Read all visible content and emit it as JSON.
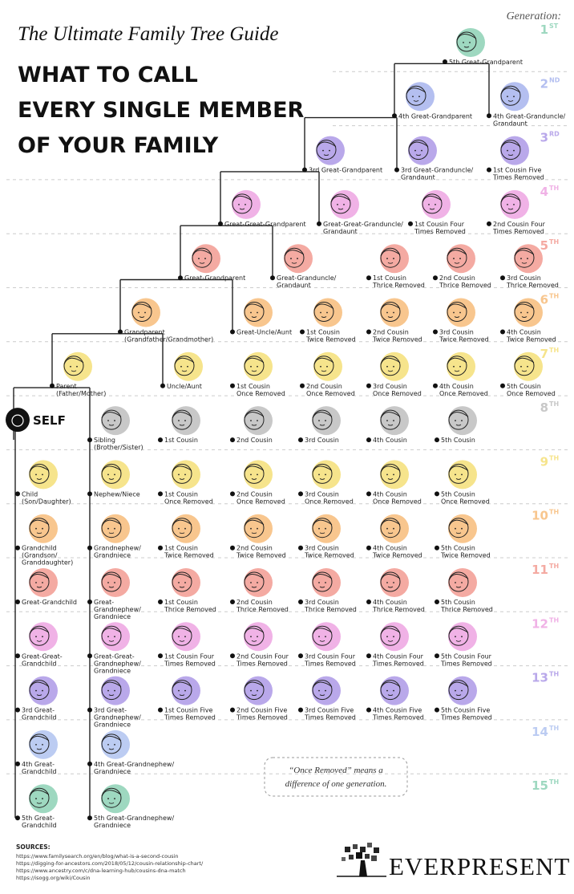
{
  "header": {
    "script_title": "The Ultimate Family Tree Guide",
    "title_lines": [
      "WHAT TO CALL",
      "EVERY SINGLE MEMBER",
      "OF YOUR FAMILY"
    ]
  },
  "generation_heading": "Generation:",
  "generations": [
    {
      "number": "1",
      "suffix": "ST",
      "color": "#9ed8c0",
      "members": [
        {
          "lines": [
            "5th Great-Grandparent"
          ]
        }
      ]
    },
    {
      "number": "2",
      "suffix": "ND",
      "color": "#b4bff0",
      "members": [
        {
          "lines": [
            "4th Great-Grandparent"
          ]
        },
        {
          "lines": [
            "4th Great-Granduncle/",
            "Grandaunt"
          ]
        }
      ]
    },
    {
      "number": "3",
      "suffix": "RD",
      "color": "#b9a8ea",
      "members": [
        {
          "lines": [
            "3rd Great-Grandparent"
          ]
        },
        {
          "lines": [
            "3rd Great-Granduncle/",
            "Grandaunt"
          ]
        },
        {
          "lines": [
            "1st Cousin Five",
            "Times Removed"
          ]
        }
      ]
    },
    {
      "number": "4",
      "suffix": "TH",
      "color": "#f0b2e6",
      "members": [
        {
          "lines": [
            "Great-Great-Grandparent"
          ]
        },
        {
          "lines": [
            "Great-Great-Granduncle/",
            "Grandaunt"
          ]
        },
        {
          "lines": [
            "1st Cousin Four",
            "Times Removed"
          ]
        },
        {
          "lines": [
            "2nd Cousin Four",
            "Times Removed"
          ]
        }
      ]
    },
    {
      "number": "5",
      "suffix": "TH",
      "color": "#f4aaa2",
      "members": [
        {
          "lines": [
            "Great-Grandparent"
          ]
        },
        {
          "lines": [
            "Great-Granduncle/",
            "Grandaunt"
          ]
        },
        {
          "lines": [
            "1st Cousin",
            "Thrice Removed"
          ]
        },
        {
          "lines": [
            "2nd Cousin",
            "Thrice Removed"
          ]
        },
        {
          "lines": [
            "3rd Cousin",
            "Thrice Removed"
          ]
        }
      ]
    },
    {
      "number": "6",
      "suffix": "TH",
      "color": "#f8c68e",
      "members": [
        {
          "lines": [
            "Grandparent",
            "(Grandfather/Grandmother)"
          ]
        },
        {
          "lines": [
            "Great-Uncle/Aunt"
          ]
        },
        {
          "lines": [
            "1st Cousin",
            "Twice Removed"
          ]
        },
        {
          "lines": [
            "2nd Cousin",
            "Twice Removed"
          ]
        },
        {
          "lines": [
            "3rd Cousin",
            "Twice Removed"
          ]
        },
        {
          "lines": [
            "4th Cousin",
            "Twice Removed"
          ]
        }
      ]
    },
    {
      "number": "7",
      "suffix": "TH",
      "color": "#f6e48c",
      "members": [
        {
          "lines": [
            "Parent",
            "(Father/Mother)"
          ]
        },
        {
          "lines": [
            "Uncle/Aunt"
          ]
        },
        {
          "lines": [
            "1st Cousin",
            "Once Removed"
          ]
        },
        {
          "lines": [
            "2nd Cousin",
            "Once Removed"
          ]
        },
        {
          "lines": [
            "3rd Cousin",
            "Once Removed"
          ]
        },
        {
          "lines": [
            "4th Cousin",
            "Once Removed"
          ]
        },
        {
          "lines": [
            "5th Cousin",
            "Once Removed"
          ]
        }
      ]
    },
    {
      "number": "8",
      "suffix": "TH",
      "color": "#c8c8c8",
      "members": [
        {
          "lines": [
            "SELF"
          ]
        },
        {
          "lines": [
            "Sibling",
            "(Brother/Sister)"
          ]
        },
        {
          "lines": [
            "1st Cousin"
          ]
        },
        {
          "lines": [
            "2nd Cousin"
          ]
        },
        {
          "lines": [
            "3rd Cousin"
          ]
        },
        {
          "lines": [
            "4th Cousin"
          ]
        },
        {
          "lines": [
            "5th Cousin"
          ]
        }
      ]
    },
    {
      "number": "9",
      "suffix": "TH",
      "color": "#f6e48c",
      "members": [
        {
          "lines": [
            "Child",
            "(Son/Daughter)"
          ]
        },
        {
          "lines": [
            "Nephew/Niece"
          ]
        },
        {
          "lines": [
            "1st Cousin",
            "Once Removed"
          ]
        },
        {
          "lines": [
            "2nd Cousin",
            "Once Removed"
          ]
        },
        {
          "lines": [
            "3rd Cousin",
            "Once Removed"
          ]
        },
        {
          "lines": [
            "4th Cousin",
            "Once Removed"
          ]
        },
        {
          "lines": [
            "5th Cousin",
            "Once Removed"
          ]
        }
      ]
    },
    {
      "number": "10",
      "suffix": "TH",
      "color": "#f8c68e",
      "members": [
        {
          "lines": [
            "Grandchild",
            "(Grandson/",
            "Granddaughter)"
          ]
        },
        {
          "lines": [
            "Grandnephew/",
            "Grandniece"
          ]
        },
        {
          "lines": [
            "1st Cousin",
            "Twice Removed"
          ]
        },
        {
          "lines": [
            "2nd Cousin",
            "Twice Removed"
          ]
        },
        {
          "lines": [
            "3rd Cousin",
            "Twice Removed"
          ]
        },
        {
          "lines": [
            "4th Cousin",
            "Twice Removed"
          ]
        },
        {
          "lines": [
            "5th Cousin",
            "Twice Removed"
          ]
        }
      ]
    },
    {
      "number": "11",
      "suffix": "TH",
      "color": "#f4aaa2",
      "members": [
        {
          "lines": [
            "Great-Grandchild"
          ]
        },
        {
          "lines": [
            "Great-",
            "Grandnephew/",
            "Grandniece"
          ]
        },
        {
          "lines": [
            "1st Cousin",
            "Thrice Removed"
          ]
        },
        {
          "lines": [
            "2nd Cousin",
            "Thrice Removed"
          ]
        },
        {
          "lines": [
            "3rd Cousin",
            "Thrice Removed"
          ]
        },
        {
          "lines": [
            "4th Cousin",
            "Thrice Removed"
          ]
        },
        {
          "lines": [
            "5th Cousin",
            "Thrice Removed"
          ]
        }
      ]
    },
    {
      "number": "12",
      "suffix": "TH",
      "color": "#f0b2e6",
      "members": [
        {
          "lines": [
            "Great-Great-",
            "Grandchild"
          ]
        },
        {
          "lines": [
            "Great-Great-",
            "Grandnephew/",
            "Grandniece"
          ]
        },
        {
          "lines": [
            "1st Cousin Four",
            "Times Removed"
          ]
        },
        {
          "lines": [
            "2nd Cousin Four",
            "Times Removed"
          ]
        },
        {
          "lines": [
            "3rd Cousin Four",
            "Times Removed"
          ]
        },
        {
          "lines": [
            "4th Cousin Four",
            "Times Removed"
          ]
        },
        {
          "lines": [
            "5th Cousin Four",
            "Times Removed"
          ]
        }
      ]
    },
    {
      "number": "13",
      "suffix": "TH",
      "color": "#b9a8ea",
      "members": [
        {
          "lines": [
            "3rd Great-",
            "Grandchild"
          ]
        },
        {
          "lines": [
            "3rd Great-",
            "Grandnephew/",
            "Grandniece"
          ]
        },
        {
          "lines": [
            "1st Cousin Five",
            "Times Removed"
          ]
        },
        {
          "lines": [
            "2nd Cousin Five",
            "Times Removed"
          ]
        },
        {
          "lines": [
            "3rd Cousin Five",
            "Times Removed"
          ]
        },
        {
          "lines": [
            "4th Cousin Five",
            "Times Removed"
          ]
        },
        {
          "lines": [
            "5th Cousin Five",
            "Times Removed"
          ]
        }
      ]
    },
    {
      "number": "14",
      "suffix": "TH",
      "color": "#bcccf2",
      "members": [
        {
          "lines": [
            "4th Great-",
            "Grandchild"
          ]
        },
        {
          "lines": [
            "4th Great-Grandnephew/",
            "Grandniece"
          ]
        }
      ]
    },
    {
      "number": "15",
      "suffix": "TH",
      "color": "#9ed8c0",
      "members": [
        {
          "lines": [
            "5th Great-",
            "Grandchild"
          ]
        },
        {
          "lines": [
            "5th Great-Grandnephew/",
            "Grandniece"
          ]
        }
      ]
    }
  ],
  "note": [
    "“Once Removed” means a",
    "difference of one generation."
  ],
  "sources": {
    "heading": "SOURCES:",
    "links": [
      "https://www.familysearch.org/en/blog/what-is-a-second-cousin",
      "https://digging-for-ancestors.com/2018/05/12/cousin-relationship-chart/",
      "https://www.ancestry.com/c/dna-learning-hub/cousins-dna-match",
      "https://isogg.org/wiki/Cousin"
    ]
  },
  "brand": "EVERPRESENT"
}
